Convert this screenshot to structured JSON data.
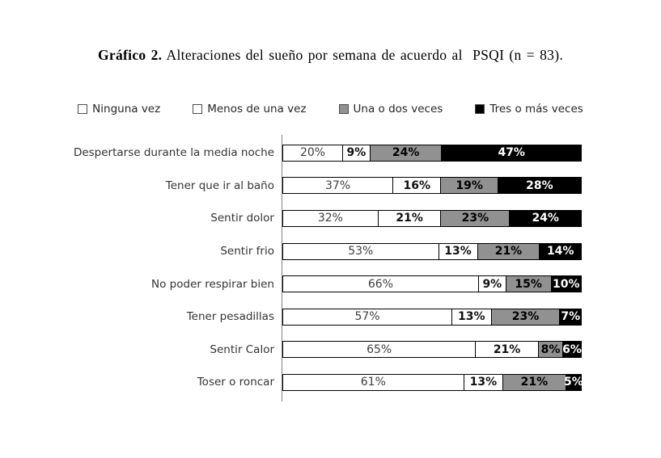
{
  "title": {
    "prefix": "Gráfico 2.",
    "rest": " Alteraciones del sueño por semana de acuerdo al  PSQI (n = 83)."
  },
  "colors": {
    "background": "#ffffff",
    "bar_border": "#000000",
    "axis_line": "#808080",
    "series_fills": [
      "#ffffff",
      "#ffffff",
      "#919191",
      "#000000"
    ],
    "value_label_colors": [
      "#3f3f3f",
      "#111111",
      "#000000",
      "#ffffff"
    ]
  },
  "chart_data": {
    "type": "bar",
    "orientation": "horizontal",
    "stacked": true,
    "unit": "%",
    "legend_position": "top",
    "value_labels": true,
    "xlim": [
      0,
      100
    ],
    "grid": false,
    "categories": [
      "Despertarse durante la media noche",
      "Tener que ir al baño",
      "Sentir dolor",
      "Sentir frio",
      "No poder respirar bien",
      "Tener pesadillas",
      "Sentir Calor",
      "Toser o roncar"
    ],
    "series": [
      {
        "name": "Ninguna vez",
        "color": "#ffffff",
        "values": [
          20,
          37,
          32,
          53,
          66,
          57,
          65,
          61
        ]
      },
      {
        "name": "Menos de una vez",
        "color": "#ffffff",
        "values": [
          9,
          16,
          21,
          13,
          9,
          13,
          21,
          13
        ]
      },
      {
        "name": "Una o dos veces",
        "color": "#919191",
        "values": [
          24,
          19,
          23,
          21,
          15,
          23,
          8,
          21
        ]
      },
      {
        "name": "Tres o más veces",
        "color": "#000000",
        "values": [
          47,
          28,
          24,
          14,
          10,
          7,
          6,
          5
        ]
      }
    ]
  }
}
